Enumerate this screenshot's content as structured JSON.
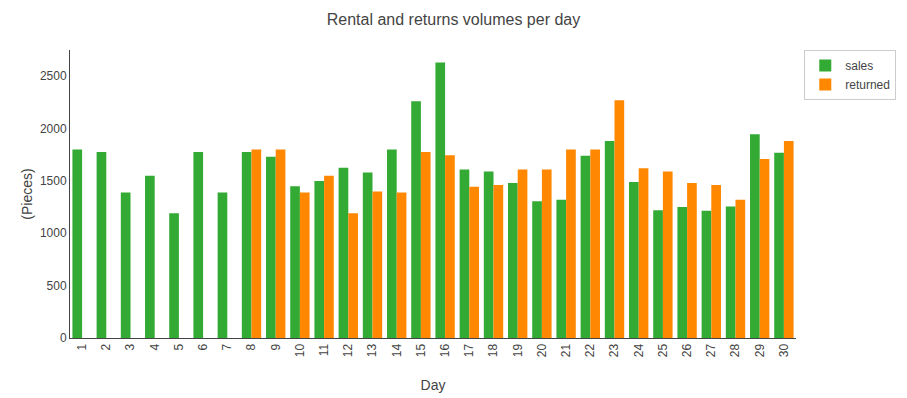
{
  "chart_data": {
    "type": "bar",
    "title": "Rental and returns volumes per day",
    "xlabel": "Day",
    "ylabel": "(Pieces)",
    "categories": [
      "1",
      "2",
      "3",
      "4",
      "5",
      "6",
      "7",
      "8",
      "9",
      "10",
      "11",
      "12",
      "13",
      "14",
      "15",
      "16",
      "17",
      "18",
      "19",
      "20",
      "21",
      "22",
      "23",
      "24",
      "25",
      "26",
      "27",
      "28",
      "29",
      "30"
    ],
    "series": [
      {
        "name": "sales",
        "color": "#33aa33",
        "values": [
          1800,
          1775,
          1390,
          1550,
          1190,
          1775,
          1390,
          1775,
          1730,
          1450,
          1500,
          1625,
          1580,
          1800,
          2260,
          2630,
          1610,
          1590,
          1480,
          1305,
          1320,
          1740,
          1880,
          1490,
          1220,
          1250,
          1215,
          1255,
          1945,
          1770
        ]
      },
      {
        "name": "returned",
        "color": "#ff8800",
        "values": [
          0,
          0,
          0,
          0,
          0,
          0,
          0,
          1800,
          1800,
          1390,
          1550,
          1190,
          1400,
          1390,
          1775,
          1745,
          1445,
          1460,
          1610,
          1610,
          1800,
          1800,
          2270,
          1620,
          1590,
          1480,
          1460,
          1320,
          1710,
          1880
        ]
      }
    ],
    "ylim": [
      0,
      2750
    ],
    "yticks": [
      0,
      500,
      1000,
      1500,
      2000,
      2500
    ],
    "grid": false,
    "legend": "upper right"
  }
}
